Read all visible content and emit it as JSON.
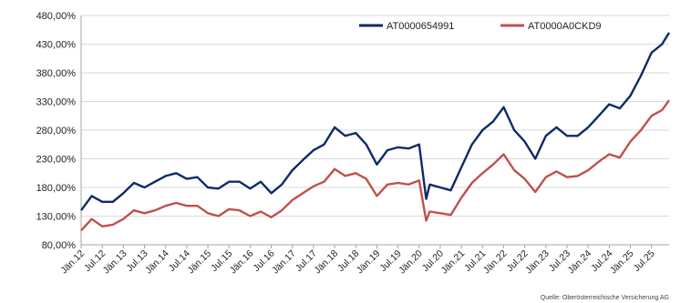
{
  "chart_data": {
    "type": "line",
    "title": "",
    "xlabel": "",
    "ylabel": "",
    "ylim": [
      80,
      480
    ],
    "y_ticks": [
      80,
      130,
      180,
      230,
      280,
      330,
      380,
      430,
      480
    ],
    "y_tick_labels": [
      "80,00%",
      "130,00%",
      "180,00%",
      "230,00%",
      "280,00%",
      "330,00%",
      "380,00%",
      "430,00%",
      "480,00%"
    ],
    "x_range": [
      "2012-01",
      "2025-12"
    ],
    "x_tick_labels": [
      "Jän.12",
      "Jul.12",
      "Jän.13",
      "Jul.13",
      "Jän.14",
      "Jul.14",
      "Jän.15",
      "Jul.15",
      "Jän.16",
      "Jul.16",
      "Jän.17",
      "Jul.17",
      "Jän.18",
      "Jul.18",
      "Jän.19",
      "Jul.19",
      "Jän.20",
      "Jul.20",
      "Jän.21",
      "Jul.21",
      "Jän.22",
      "Jul.22",
      "Jän.23",
      "Jul.23",
      "Jän.24",
      "Jul.24",
      "Jän.25",
      "Jul.25"
    ],
    "grid": true,
    "legend_position": "top-right",
    "source": "Quelle: Oberösterreichische Versicherung AG",
    "series": [
      {
        "name": "AT0000654991",
        "color": "#0f2a66",
        "points": [
          [
            "2012-01",
            140
          ],
          [
            "2012-04",
            165
          ],
          [
            "2012-07",
            155
          ],
          [
            "2012-10",
            155
          ],
          [
            "2013-01",
            170
          ],
          [
            "2013-04",
            188
          ],
          [
            "2013-07",
            180
          ],
          [
            "2013-10",
            190
          ],
          [
            "2014-01",
            200
          ],
          [
            "2014-04",
            205
          ],
          [
            "2014-07",
            195
          ],
          [
            "2014-10",
            198
          ],
          [
            "2015-01",
            180
          ],
          [
            "2015-04",
            178
          ],
          [
            "2015-07",
            190
          ],
          [
            "2015-10",
            190
          ],
          [
            "2016-01",
            178
          ],
          [
            "2016-04",
            190
          ],
          [
            "2016-07",
            170
          ],
          [
            "2016-10",
            185
          ],
          [
            "2017-01",
            210
          ],
          [
            "2017-04",
            228
          ],
          [
            "2017-07",
            245
          ],
          [
            "2017-10",
            255
          ],
          [
            "2018-01",
            285
          ],
          [
            "2018-04",
            270
          ],
          [
            "2018-07",
            275
          ],
          [
            "2018-10",
            255
          ],
          [
            "2019-01",
            220
          ],
          [
            "2019-04",
            245
          ],
          [
            "2019-07",
            250
          ],
          [
            "2019-10",
            248
          ],
          [
            "2020-01",
            255
          ],
          [
            "2020-03",
            160
          ],
          [
            "2020-04",
            185
          ],
          [
            "2020-07",
            180
          ],
          [
            "2020-10",
            175
          ],
          [
            "2021-01",
            215
          ],
          [
            "2021-04",
            255
          ],
          [
            "2021-07",
            280
          ],
          [
            "2021-10",
            295
          ],
          [
            "2022-01",
            320
          ],
          [
            "2022-04",
            280
          ],
          [
            "2022-07",
            260
          ],
          [
            "2022-10",
            230
          ],
          [
            "2023-01",
            270
          ],
          [
            "2023-04",
            285
          ],
          [
            "2023-07",
            270
          ],
          [
            "2023-10",
            270
          ],
          [
            "2024-01",
            285
          ],
          [
            "2024-04",
            305
          ],
          [
            "2024-07",
            325
          ],
          [
            "2024-10",
            318
          ],
          [
            "2025-01",
            340
          ],
          [
            "2025-04",
            375
          ],
          [
            "2025-07",
            415
          ],
          [
            "2025-10",
            430
          ],
          [
            "2025-12",
            450
          ]
        ]
      },
      {
        "name": "AT0000A0CKD9",
        "color": "#c0504d",
        "points": [
          [
            "2012-01",
            105
          ],
          [
            "2012-04",
            125
          ],
          [
            "2012-07",
            112
          ],
          [
            "2012-10",
            115
          ],
          [
            "2013-01",
            125
          ],
          [
            "2013-04",
            140
          ],
          [
            "2013-07",
            135
          ],
          [
            "2013-10",
            140
          ],
          [
            "2014-01",
            148
          ],
          [
            "2014-04",
            153
          ],
          [
            "2014-07",
            148
          ],
          [
            "2014-10",
            148
          ],
          [
            "2015-01",
            135
          ],
          [
            "2015-04",
            130
          ],
          [
            "2015-07",
            142
          ],
          [
            "2015-10",
            140
          ],
          [
            "2016-01",
            130
          ],
          [
            "2016-04",
            138
          ],
          [
            "2016-07",
            128
          ],
          [
            "2016-10",
            140
          ],
          [
            "2017-01",
            158
          ],
          [
            "2017-04",
            170
          ],
          [
            "2017-07",
            182
          ],
          [
            "2017-10",
            190
          ],
          [
            "2018-01",
            212
          ],
          [
            "2018-04",
            200
          ],
          [
            "2018-07",
            205
          ],
          [
            "2018-10",
            195
          ],
          [
            "2019-01",
            165
          ],
          [
            "2019-04",
            185
          ],
          [
            "2019-07",
            188
          ],
          [
            "2019-10",
            185
          ],
          [
            "2020-01",
            192
          ],
          [
            "2020-03",
            122
          ],
          [
            "2020-04",
            138
          ],
          [
            "2020-07",
            135
          ],
          [
            "2020-10",
            132
          ],
          [
            "2021-01",
            162
          ],
          [
            "2021-04",
            188
          ],
          [
            "2021-07",
            205
          ],
          [
            "2021-10",
            220
          ],
          [
            "2022-01",
            238
          ],
          [
            "2022-04",
            210
          ],
          [
            "2022-07",
            195
          ],
          [
            "2022-10",
            172
          ],
          [
            "2023-01",
            198
          ],
          [
            "2023-04",
            208
          ],
          [
            "2023-07",
            198
          ],
          [
            "2023-10",
            200
          ],
          [
            "2024-01",
            210
          ],
          [
            "2024-04",
            225
          ],
          [
            "2024-07",
            238
          ],
          [
            "2024-10",
            232
          ],
          [
            "2025-01",
            260
          ],
          [
            "2025-04",
            280
          ],
          [
            "2025-07",
            305
          ],
          [
            "2025-10",
            315
          ],
          [
            "2025-12",
            332
          ]
        ]
      }
    ]
  }
}
